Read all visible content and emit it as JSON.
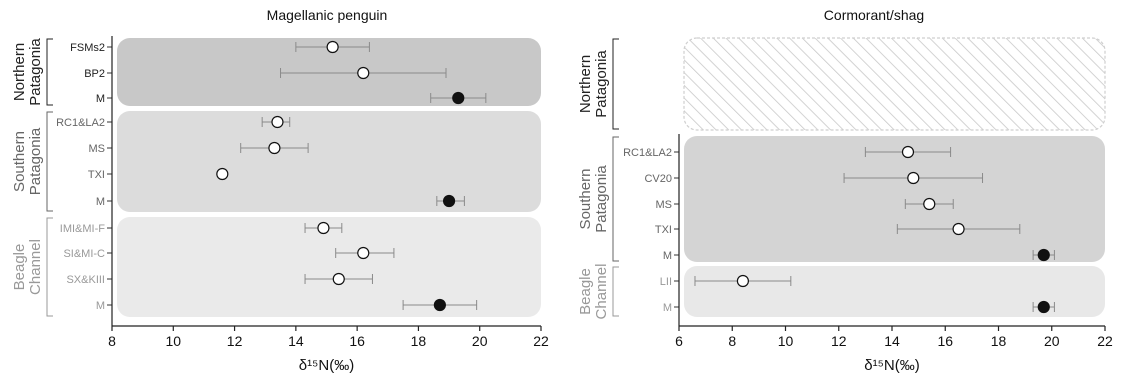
{
  "chart_data": [
    {
      "type": "scatter",
      "title": "Magellanic penguin",
      "xlabel": "δ¹⁵N(‰)",
      "xlim": [
        8,
        22
      ],
      "xticks": [
        8,
        10,
        12,
        14,
        16,
        18,
        20,
        22
      ],
      "groups": [
        {
          "name_lines": [
            "Northern",
            "Patagonia"
          ],
          "hatched": false,
          "fill": "#c8c8c8",
          "label_color": "#222222",
          "rows": [
            {
              "label": "FSMs2",
              "mean": 15.2,
              "lo": 14.0,
              "hi": 16.4,
              "marker": "open"
            },
            {
              "label": "BP2",
              "mean": 16.2,
              "lo": 13.5,
              "hi": 18.9,
              "marker": "open"
            },
            {
              "label": "M",
              "mean": 19.3,
              "lo": 18.4,
              "hi": 20.2,
              "marker": "filled"
            }
          ]
        },
        {
          "name_lines": [
            "Southern",
            "Patagonia"
          ],
          "hatched": false,
          "fill": "#dcdcdc",
          "label_color": "#666666",
          "rows": [
            {
              "label": "RC1&LA2",
              "mean": 13.4,
              "lo": 12.9,
              "hi": 13.8,
              "marker": "open"
            },
            {
              "label": "MS",
              "mean": 13.3,
              "lo": 12.2,
              "hi": 14.4,
              "marker": "open"
            },
            {
              "label": "TXI",
              "mean": 11.6,
              "lo": 11.6,
              "hi": 11.6,
              "marker": "open"
            },
            {
              "label": "M",
              "mean": 19.0,
              "lo": 18.6,
              "hi": 19.5,
              "marker": "filled"
            }
          ]
        },
        {
          "name_lines": [
            "Beagle",
            "Channel"
          ],
          "hatched": false,
          "fill": "#eaeaea",
          "label_color": "#999999",
          "rows": [
            {
              "label": "IMI&MI-F",
              "mean": 14.9,
              "lo": 14.3,
              "hi": 15.5,
              "marker": "open"
            },
            {
              "label": "SI&MI-C",
              "mean": 16.2,
              "lo": 15.3,
              "hi": 17.2,
              "marker": "open"
            },
            {
              "label": "SX&KIII",
              "mean": 15.4,
              "lo": 14.3,
              "hi": 16.5,
              "marker": "open"
            },
            {
              "label": "M",
              "mean": 18.7,
              "lo": 17.5,
              "hi": 19.9,
              "marker": "filled"
            }
          ]
        }
      ]
    },
    {
      "type": "scatter",
      "title": "Cormorant/shag",
      "xlabel": "δ¹⁵N(‰)",
      "xlim": [
        6,
        22
      ],
      "xticks": [
        6,
        8,
        10,
        12,
        14,
        16,
        18,
        20,
        22
      ],
      "groups": [
        {
          "name_lines": [
            "Northern",
            "Patagonia"
          ],
          "hatched": true,
          "fill": "#ffffff",
          "label_color": "#222222",
          "rows": [
            {
              "label": "",
              "mean": null,
              "lo": null,
              "hi": null,
              "marker": "none"
            },
            {
              "label": "",
              "mean": null,
              "lo": null,
              "hi": null,
              "marker": "none"
            },
            {
              "label": "",
              "mean": null,
              "lo": null,
              "hi": null,
              "marker": "none"
            },
            {
              "label": "",
              "mean": null,
              "lo": null,
              "hi": null,
              "marker": "none"
            }
          ]
        },
        {
          "name_lines": [
            "Southern",
            "Patagonia"
          ],
          "hatched": false,
          "fill": "#d4d4d4",
          "label_color": "#666666",
          "rows": [
            {
              "label": "RC1&LA2",
              "mean": 14.6,
              "lo": 13.0,
              "hi": 16.2,
              "marker": "open"
            },
            {
              "label": "CV20",
              "mean": 14.8,
              "lo": 12.2,
              "hi": 17.4,
              "marker": "open"
            },
            {
              "label": "MS",
              "mean": 15.4,
              "lo": 14.5,
              "hi": 16.3,
              "marker": "open"
            },
            {
              "label": "TXI",
              "mean": 16.5,
              "lo": 14.2,
              "hi": 18.8,
              "marker": "open"
            },
            {
              "label": "M",
              "mean": 19.7,
              "lo": 19.3,
              "hi": 20.1,
              "marker": "filled"
            }
          ]
        },
        {
          "name_lines": [
            "Beagle",
            "Channel"
          ],
          "hatched": false,
          "fill": "#e8e8e8",
          "label_color": "#999999",
          "rows": [
            {
              "label": "LII",
              "mean": 8.4,
              "lo": 6.6,
              "hi": 10.2,
              "marker": "open"
            },
            {
              "label": "M",
              "mean": 19.7,
              "lo": 19.3,
              "hi": 20.1,
              "marker": "filled"
            }
          ]
        }
      ]
    }
  ]
}
